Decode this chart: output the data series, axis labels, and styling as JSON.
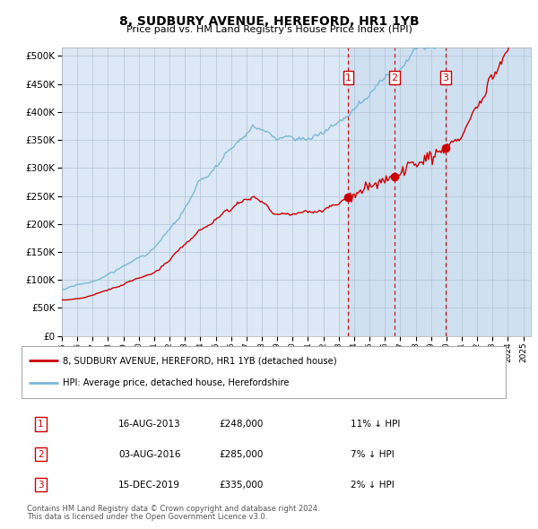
{
  "title": "8, SUDBURY AVENUE, HEREFORD, HR1 1YB",
  "subtitle": "Price paid vs. HM Land Registry's House Price Index (HPI)",
  "ytick_values": [
    0,
    50000,
    100000,
    150000,
    200000,
    250000,
    300000,
    350000,
    400000,
    450000,
    500000
  ],
  "ylim": [
    0,
    515000
  ],
  "hpi_color": "#7ab8d8",
  "price_color": "#cc0000",
  "vline_color": "#cc0000",
  "bg_color": "#dce8f5",
  "shade_color": "#d0e4f5",
  "grid_color": "#b0c4d8",
  "sales": [
    {
      "label": "1",
      "date": "16-AUG-2013",
      "price": 248000,
      "pct": "11%",
      "year": 2013.625
    },
    {
      "label": "2",
      "date": "03-AUG-2016",
      "price": 285000,
      "pct": "7%",
      "year": 2016.625
    },
    {
      "label": "3",
      "date": "15-DEC-2019",
      "price": 335000,
      "pct": "2%",
      "year": 2019.958
    }
  ],
  "legend_items": [
    {
      "label": "8, SUDBURY AVENUE, HEREFORD, HR1 1YB (detached house)",
      "color": "#cc0000"
    },
    {
      "label": "HPI: Average price, detached house, Herefordshire",
      "color": "#7ab8d8"
    }
  ],
  "footer": [
    "Contains HM Land Registry data © Crown copyright and database right 2024.",
    "This data is licensed under the Open Government Licence v3.0."
  ],
  "xtick_years": [
    "1995",
    "1996",
    "1997",
    "1998",
    "1999",
    "2000",
    "2001",
    "2002",
    "2003",
    "2004",
    "2005",
    "2006",
    "2007",
    "2008",
    "2009",
    "2010",
    "2011",
    "2012",
    "2013",
    "2014",
    "2015",
    "2016",
    "2017",
    "2018",
    "2019",
    "2020",
    "2021",
    "2022",
    "2023",
    "2024",
    "2025"
  ],
  "xmin": 1995,
  "xmax": 2025.5
}
